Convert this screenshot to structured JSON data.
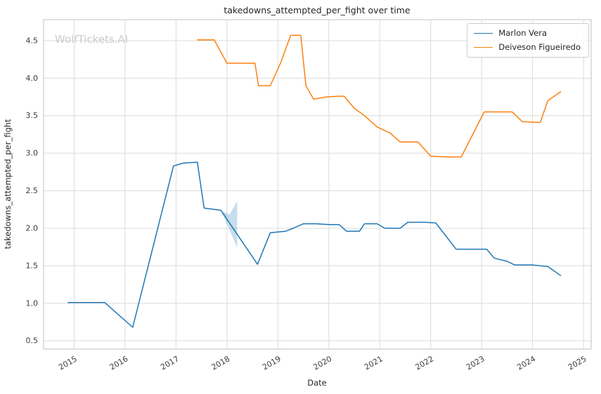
{
  "watermark": "WolfTickets.AI",
  "chart_data": {
    "type": "line",
    "title": "takedowns_attempted_per_fight over time",
    "xlabel": "Date",
    "ylabel": "takedowns_attempted_per_fight",
    "xlim": [
      2014.4,
      2025.15
    ],
    "ylim": [
      0.39,
      4.78
    ],
    "xticks": [
      2015,
      2016,
      2017,
      2018,
      2019,
      2020,
      2021,
      2022,
      2023,
      2024,
      2025
    ],
    "yticks": [
      0.5,
      1.0,
      1.5,
      2.0,
      2.5,
      3.0,
      3.5,
      4.0,
      4.5
    ],
    "grid": true,
    "legend_position": "upper right",
    "series": [
      {
        "name": "Marlon Vera",
        "color": "#1f77b4",
        "x": [
          2014.88,
          2015.6,
          2016.15,
          2016.95,
          2017.15,
          2017.42,
          2017.55,
          2017.88,
          2018.6,
          2018.85,
          2019.15,
          2019.3,
          2019.5,
          2019.75,
          2020.0,
          2020.2,
          2020.35,
          2020.6,
          2020.7,
          2020.95,
          2021.1,
          2021.4,
          2021.55,
          2021.9,
          2022.1,
          2022.5,
          2022.9,
          2023.1,
          2023.25,
          2023.5,
          2023.65,
          2024.0,
          2024.3,
          2024.55
        ],
        "y": [
          1.01,
          1.01,
          0.68,
          2.83,
          2.87,
          2.88,
          2.27,
          2.24,
          1.52,
          1.94,
          1.96,
          2.0,
          2.06,
          2.06,
          2.05,
          2.05,
          1.96,
          1.96,
          2.06,
          2.06,
          2.0,
          2.0,
          2.08,
          2.08,
          2.07,
          1.72,
          1.72,
          1.72,
          1.6,
          1.56,
          1.51,
          1.51,
          1.49,
          1.37
        ]
      },
      {
        "name": "Deiveson Figueiredo",
        "color": "#ff7f0e",
        "x": [
          2017.42,
          2017.75,
          2018.0,
          2018.35,
          2018.55,
          2018.62,
          2018.85,
          2019.05,
          2019.25,
          2019.45,
          2019.55,
          2019.7,
          2019.95,
          2020.2,
          2020.3,
          2020.5,
          2020.7,
          2020.95,
          2021.2,
          2021.4,
          2021.75,
          2022.0,
          2022.3,
          2022.6,
          2023.05,
          2023.4,
          2023.6,
          2023.8,
          2024.15,
          2024.3,
          2024.55
        ],
        "y": [
          4.51,
          4.51,
          4.2,
          4.2,
          4.2,
          3.9,
          3.9,
          4.2,
          4.57,
          4.57,
          3.9,
          3.72,
          3.75,
          3.76,
          3.76,
          3.6,
          3.5,
          3.35,
          3.27,
          3.15,
          3.15,
          2.96,
          2.95,
          2.95,
          3.55,
          3.55,
          3.55,
          3.42,
          3.41,
          3.7,
          3.82
        ]
      }
    ],
    "band": {
      "series": "Marlon Vera",
      "color": "#1f77b4",
      "opacity": 0.25,
      "x": [
        2017.88,
        2018.05,
        2018.2
      ],
      "lower": [
        2.24,
        1.98,
        1.74
      ],
      "upper": [
        2.24,
        2.18,
        2.36
      ]
    }
  }
}
